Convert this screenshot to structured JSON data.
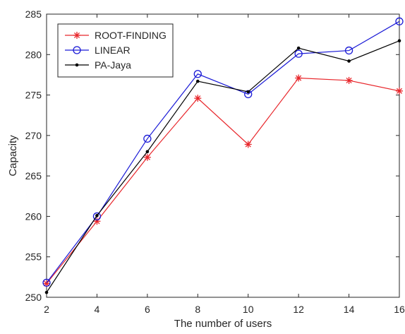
{
  "chart_data": {
    "type": "line",
    "title": "",
    "xlabel": "The number of users",
    "ylabel": "Capacity",
    "xlim": [
      2,
      16
    ],
    "ylim": [
      250,
      285
    ],
    "x": [
      2,
      4,
      6,
      8,
      10,
      12,
      14,
      16
    ],
    "xticks": [
      "2",
      "4",
      "6",
      "8",
      "10",
      "12",
      "14",
      "16"
    ],
    "yticks": [
      "250",
      "255",
      "260",
      "265",
      "270",
      "275",
      "280",
      "285"
    ],
    "grid": false,
    "legend_position": "top-left",
    "series": [
      {
        "name": "ROOT-FINDING",
        "marker": "asterisk",
        "color": "#e8262b",
        "values": [
          251.7,
          259.4,
          267.3,
          274.6,
          268.9,
          277.1,
          276.8,
          275.5
        ]
      },
      {
        "name": "LINEAR",
        "marker": "circle",
        "color": "#1a1ad6",
        "values": [
          251.8,
          260.0,
          269.6,
          277.6,
          275.1,
          280.1,
          280.5,
          284.1
        ]
      },
      {
        "name": "PA-Jaya",
        "marker": "dot",
        "color": "#000000",
        "values": [
          250.6,
          260.1,
          268.0,
          276.7,
          275.4,
          280.8,
          279.2,
          281.7
        ]
      }
    ]
  }
}
